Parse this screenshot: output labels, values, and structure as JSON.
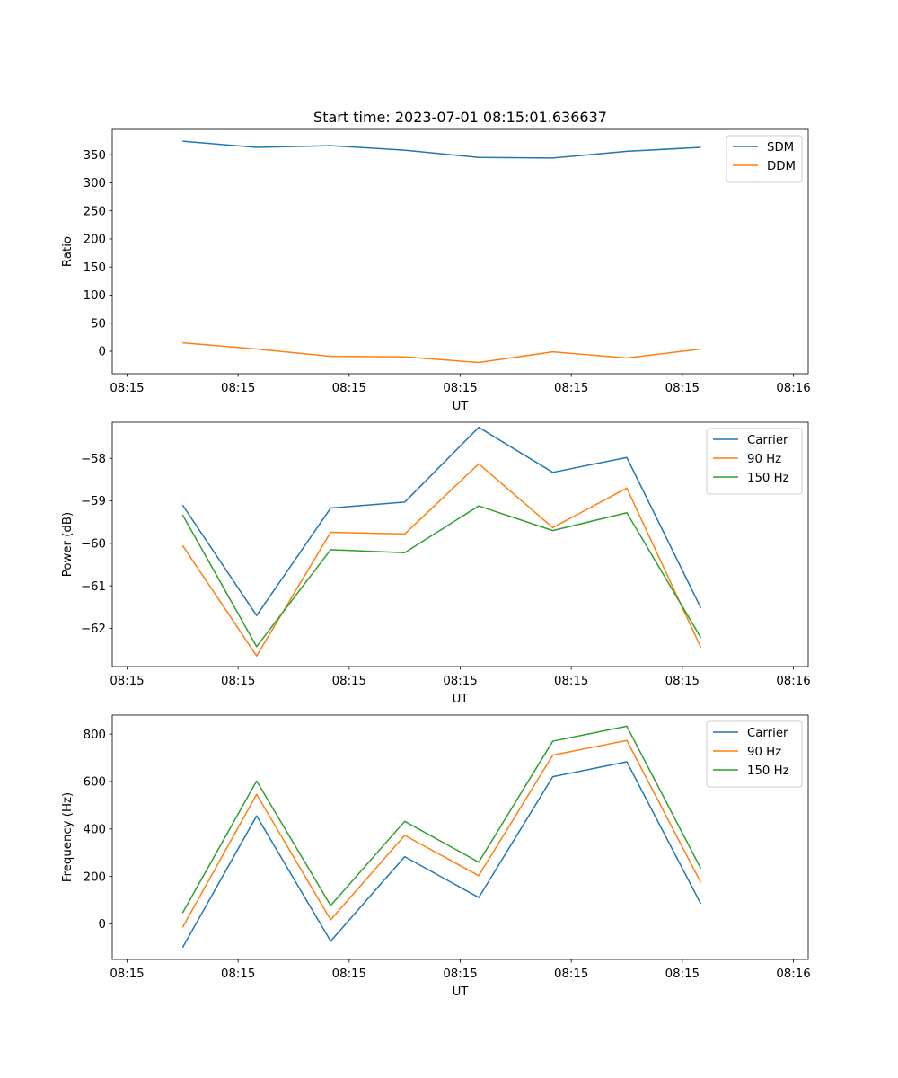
{
  "figure_title": "Start time: 2023-07-01 08:15:01.636637",
  "chart_data": [
    {
      "type": "line",
      "xlabel": "UT",
      "ylabel": "Ratio",
      "xlim": [
        -0.5,
        8.9
      ],
      "ylim": [
        -40,
        395
      ],
      "x_ticks": [
        {
          "value": -0.3,
          "label": "08:15"
        },
        {
          "value": 1.2,
          "label": "08:15"
        },
        {
          "value": 2.7,
          "label": "08:15"
        },
        {
          "value": 4.2,
          "label": "08:15"
        },
        {
          "value": 5.7,
          "label": "08:15"
        },
        {
          "value": 7.2,
          "label": "08:15"
        },
        {
          "value": 8.7,
          "label": "08:16"
        }
      ],
      "y_ticks": [
        0,
        50,
        100,
        150,
        200,
        250,
        300,
        350
      ],
      "legend_position": "upper right",
      "x": [
        0.45,
        1.45,
        2.45,
        3.45,
        4.45,
        5.45,
        6.45,
        7.45
      ],
      "series": [
        {
          "name": "SDM",
          "color": "#1f77b4",
          "values": [
            374,
            363,
            366,
            358,
            345,
            344,
            356,
            363
          ]
        },
        {
          "name": "DDM",
          "color": "#ff7f0e",
          "values": [
            15,
            4,
            -9,
            -10,
            -20,
            -1,
            -12,
            4
          ]
        }
      ]
    },
    {
      "type": "line",
      "xlabel": "UT",
      "ylabel": "Power (dB)",
      "xlim": [
        -0.5,
        8.9
      ],
      "ylim": [
        -62.9,
        -57.15
      ],
      "x_ticks": [
        {
          "value": -0.3,
          "label": "08:15"
        },
        {
          "value": 1.2,
          "label": "08:15"
        },
        {
          "value": 2.7,
          "label": "08:15"
        },
        {
          "value": 4.2,
          "label": "08:15"
        },
        {
          "value": 5.7,
          "label": "08:15"
        },
        {
          "value": 7.2,
          "label": "08:15"
        },
        {
          "value": 8.7,
          "label": "08:16"
        }
      ],
      "y_ticks": [
        -62,
        -61,
        -60,
        -59,
        -58
      ],
      "y_tick_labels": [
        "−62",
        "−61",
        "−60",
        "−59",
        "−58"
      ],
      "legend_position": "upper right",
      "x": [
        0.45,
        1.45,
        2.45,
        3.45,
        4.45,
        5.45,
        6.45,
        7.45
      ],
      "series": [
        {
          "name": "Carrier",
          "color": "#1f77b4",
          "values": [
            -59.1,
            -61.7,
            -59.17,
            -59.03,
            -57.27,
            -58.33,
            -57.98,
            -61.52
          ]
        },
        {
          "name": "90 Hz",
          "color": "#ff7f0e",
          "values": [
            -60.05,
            -62.65,
            -59.74,
            -59.78,
            -58.13,
            -59.63,
            -58.7,
            -62.45
          ]
        },
        {
          "name": "150 Hz",
          "color": "#2ca02c",
          "values": [
            -59.33,
            -62.43,
            -60.15,
            -60.22,
            -59.12,
            -59.7,
            -59.28,
            -62.22
          ]
        }
      ]
    },
    {
      "type": "line",
      "xlabel": "UT",
      "ylabel": "Frequency (Hz)",
      "xlim": [
        -0.5,
        8.9
      ],
      "ylim": [
        -150,
        880
      ],
      "x_ticks": [
        {
          "value": -0.3,
          "label": "08:15"
        },
        {
          "value": 1.2,
          "label": "08:15"
        },
        {
          "value": 2.7,
          "label": "08:15"
        },
        {
          "value": 4.2,
          "label": "08:15"
        },
        {
          "value": 5.7,
          "label": "08:15"
        },
        {
          "value": 7.2,
          "label": "08:15"
        },
        {
          "value": 8.7,
          "label": "08:16"
        }
      ],
      "y_ticks": [
        0,
        200,
        400,
        600,
        800
      ],
      "legend_position": "upper right",
      "x": [
        0.45,
        1.45,
        2.45,
        3.45,
        4.45,
        5.45,
        6.45,
        7.45
      ],
      "series": [
        {
          "name": "Carrier",
          "color": "#1f77b4",
          "values": [
            -100,
            455,
            -73,
            283,
            111,
            620,
            683,
            84
          ]
        },
        {
          "name": "90 Hz",
          "color": "#ff7f0e",
          "values": [
            -15,
            546,
            17,
            373,
            203,
            711,
            773,
            174
          ]
        },
        {
          "name": "150 Hz",
          "color": "#2ca02c",
          "values": [
            46,
            602,
            77,
            432,
            260,
            770,
            833,
            233
          ]
        }
      ]
    }
  ]
}
